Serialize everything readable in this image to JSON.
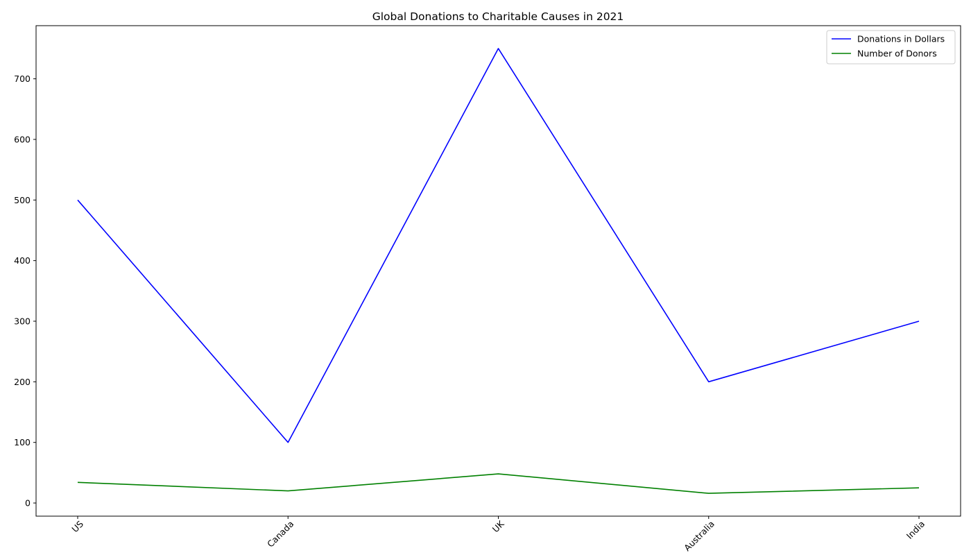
{
  "chart_data": {
    "type": "line",
    "title": "Global Donations to Charitable Causes in 2021",
    "xlabel": "",
    "ylabel": "",
    "categories": [
      "US",
      "Canada",
      "UK",
      "Australia",
      "India"
    ],
    "series": [
      {
        "name": "Donations in Dollars",
        "color": "#0000ff",
        "values": [
          500,
          100,
          750,
          200,
          300
        ]
      },
      {
        "name": "Number of Donors",
        "color": "#008000",
        "values": [
          34,
          20,
          48,
          16,
          25
        ]
      }
    ],
    "ylim": [
      -21.7,
      787.7
    ],
    "yticks": [
      0,
      100,
      200,
      300,
      400,
      500,
      600,
      700
    ],
    "grid": false,
    "legend": "top-right",
    "xtick_rotation": 45
  }
}
